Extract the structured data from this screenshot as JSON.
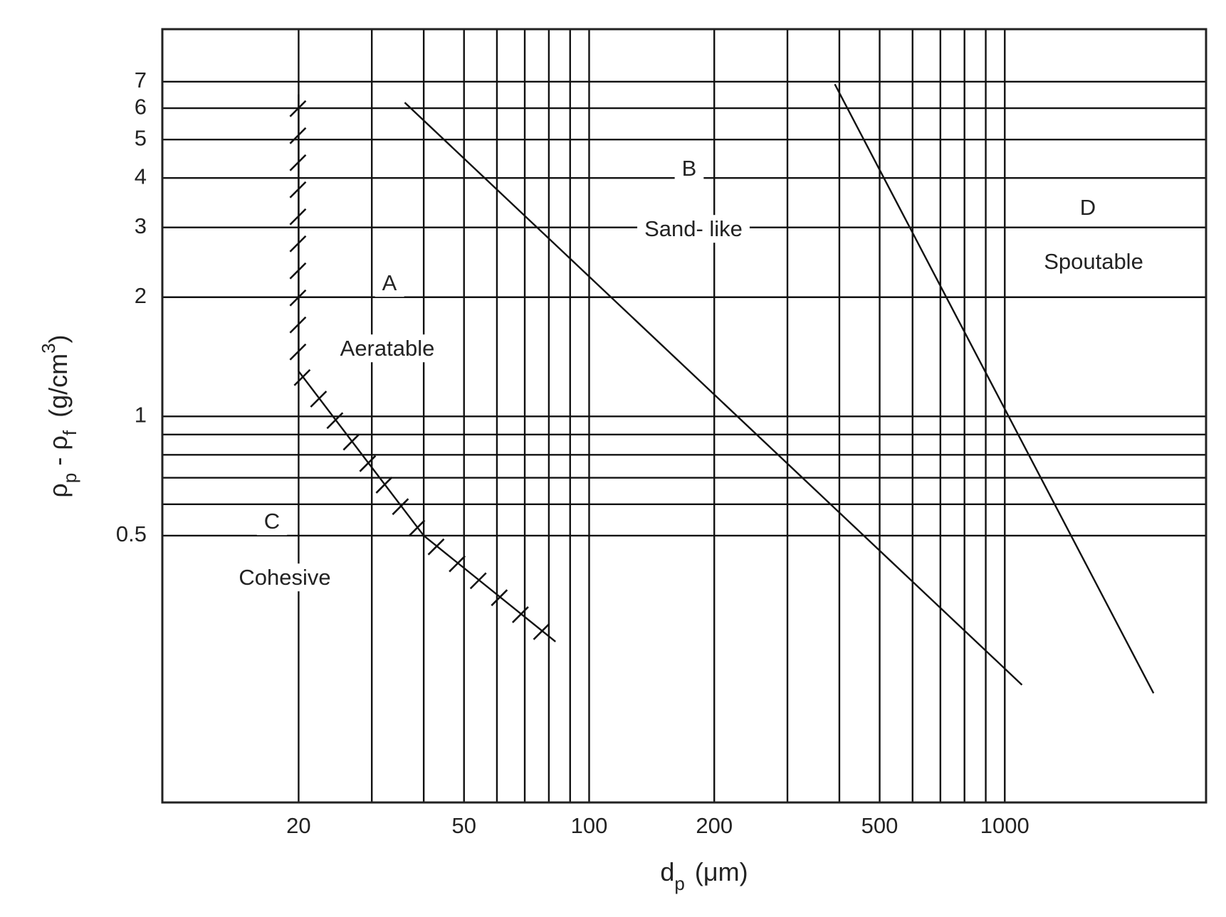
{
  "chart_data": {
    "type": "line",
    "x_label": {
      "main": "d",
      "sub": "p",
      "unit": "(μm)"
    },
    "y_label": {
      "rho1": "ρ",
      "sub1": "p",
      "minus": " - ρ",
      "sub2": "f",
      "unit": "(g/cm",
      "sup": "3",
      "close": ")"
    },
    "log_x": true,
    "log_y": true,
    "grid": true,
    "xlim": [
      9.4,
      3050
    ],
    "ylim": [
      0.106,
      9.5
    ],
    "xticks": [
      20,
      50,
      100,
      200,
      500,
      1000
    ],
    "yticks": [
      0.5,
      1,
      2,
      3,
      4,
      5,
      6,
      7
    ],
    "xgrid": [
      20,
      30,
      40,
      50,
      60,
      70,
      80,
      90,
      100,
      200,
      300,
      400,
      500,
      600,
      700,
      800,
      900,
      1000
    ],
    "ygrid": [
      0.5,
      0.6,
      0.7,
      0.8,
      0.9,
      1,
      2,
      3,
      4,
      5,
      6,
      7
    ],
    "series": [
      {
        "color": "#111111",
        "hatched": true,
        "x": [
          20,
          20,
          40,
          83
        ],
        "values": [
          6.5,
          1.3,
          0.5,
          0.27
        ]
      },
      {
        "color": "#111111",
        "hatched": false,
        "x": [
          36,
          1100
        ],
        "values": [
          6.2,
          0.21
        ]
      },
      {
        "color": "#111111",
        "hatched": false,
        "x": [
          390,
          2280
        ],
        "values": [
          6.9,
          0.2
        ]
      }
    ],
    "annotations": [
      "A",
      "Aeratable",
      "B",
      "Sand- like",
      "C",
      "Cohesive",
      "D",
      "Spoutable"
    ]
  }
}
